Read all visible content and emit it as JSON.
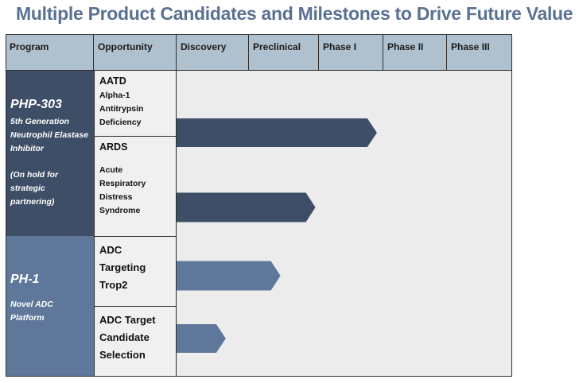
{
  "title": "Multiple Product Candidates and Milestones to Drive Future Value",
  "colors": {
    "dark": "#3d4e66",
    "light": "#5e779a",
    "header": "#afc0cf",
    "title": "#5a7191"
  },
  "chart_data": {
    "type": "bar",
    "orientation": "horizontal",
    "stages": [
      "Discovery",
      "Preclinical",
      "Phase I",
      "Phase II",
      "Phase III"
    ],
    "columns": [
      "Program",
      "Opportunity"
    ],
    "programs": [
      {
        "name": "PHP-303",
        "desc": "5th Generation Neutrophil Elastase Inhibitor",
        "note": "(On hold for strategic partnering)"
      },
      {
        "name": "PH-1",
        "desc": "Novel ADC Platform"
      }
    ],
    "series": [
      {
        "name": "AATD",
        "desc": "Alpha-1 Antitrypsin Deficiency",
        "program": "PHP-303",
        "value": 2.9,
        "color": "#3d4e66"
      },
      {
        "name": "ARDS",
        "desc": "Acute Respiratory Distress Syndrome",
        "program": "PHP-303",
        "value": 1.95,
        "color": "#3d4e66"
      },
      {
        "name": "ADC Targeting Trop2",
        "desc": "",
        "program": "PH-1",
        "value": 1.45,
        "color": "#5e779a"
      },
      {
        "name": "ADC Target Candidate Selection",
        "desc": "",
        "program": "PH-1",
        "value": 0.68,
        "color": "#5e779a"
      }
    ],
    "xlim": [
      0,
      5
    ],
    "units": "development stages completed"
  }
}
